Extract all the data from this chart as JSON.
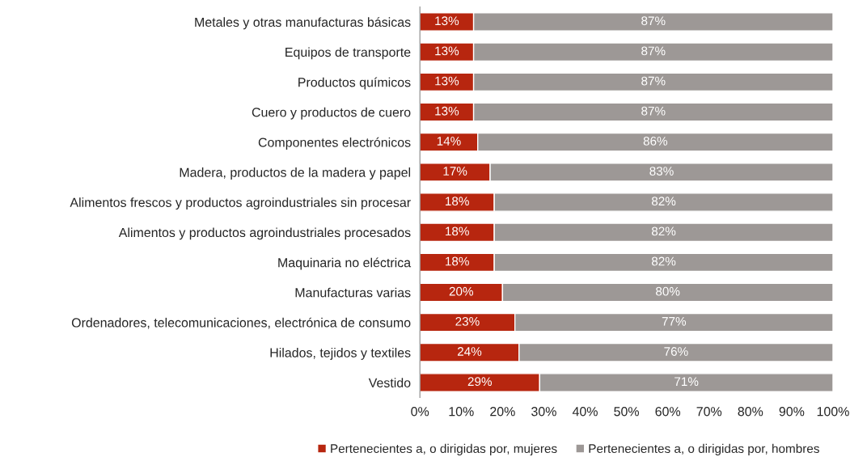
{
  "chart_data": {
    "type": "bar",
    "orientation": "horizontal",
    "stacked": true,
    "categories": [
      "Metales y otras manufacturas básicas",
      "Equipos de transporte",
      "Productos químicos",
      "Cuero y productos de cuero",
      "Componentes electrónicos",
      "Madera, productos de la madera y papel",
      "Alimentos frescos y productos agroindustriales sin procesar",
      "Alimentos y productos agroindustriales procesados",
      "Maquinaria no eléctrica",
      "Manufacturas varias",
      "Ordenadores, telecomunicaciones, electrónica de consumo",
      "Hilados, tejidos y textiles",
      "Vestido"
    ],
    "series": [
      {
        "name": "Pertenecientes a, o dirigidas por, mujeres",
        "color": "#b7260f",
        "values": [
          13,
          13,
          13,
          13,
          14,
          17,
          18,
          18,
          18,
          20,
          23,
          24,
          29
        ],
        "value_labels": [
          "13%",
          "13%",
          "13%",
          "13%",
          "14%",
          "17%",
          "18%",
          "18%",
          "18%",
          "20%",
          "23%",
          "24%",
          "29%"
        ]
      },
      {
        "name": "Pertenecientes a, o dirigidas por, hombres",
        "color": "#9d9896",
        "values": [
          87,
          87,
          87,
          87,
          86,
          83,
          82,
          82,
          82,
          80,
          77,
          76,
          71
        ],
        "value_labels": [
          "87%",
          "87%",
          "87%",
          "87%",
          "86%",
          "83%",
          "82%",
          "82%",
          "82%",
          "80%",
          "77%",
          "76%",
          "71%"
        ]
      }
    ],
    "xlim": [
      0,
      100
    ],
    "xticks": [
      {
        "value": 0,
        "label": "0%"
      },
      {
        "value": 10,
        "label": "10%"
      },
      {
        "value": 20,
        "label": "20%"
      },
      {
        "value": 30,
        "label": "30%"
      },
      {
        "value": 40,
        "label": "40%"
      },
      {
        "value": 50,
        "label": "50%"
      },
      {
        "value": 60,
        "label": "60%"
      },
      {
        "value": 70,
        "label": "70%"
      },
      {
        "value": 80,
        "label": "80%"
      },
      {
        "value": 90,
        "label": "90%"
      },
      {
        "value": 100,
        "label": "100%"
      }
    ],
    "grid": false,
    "legend": "bottom"
  }
}
